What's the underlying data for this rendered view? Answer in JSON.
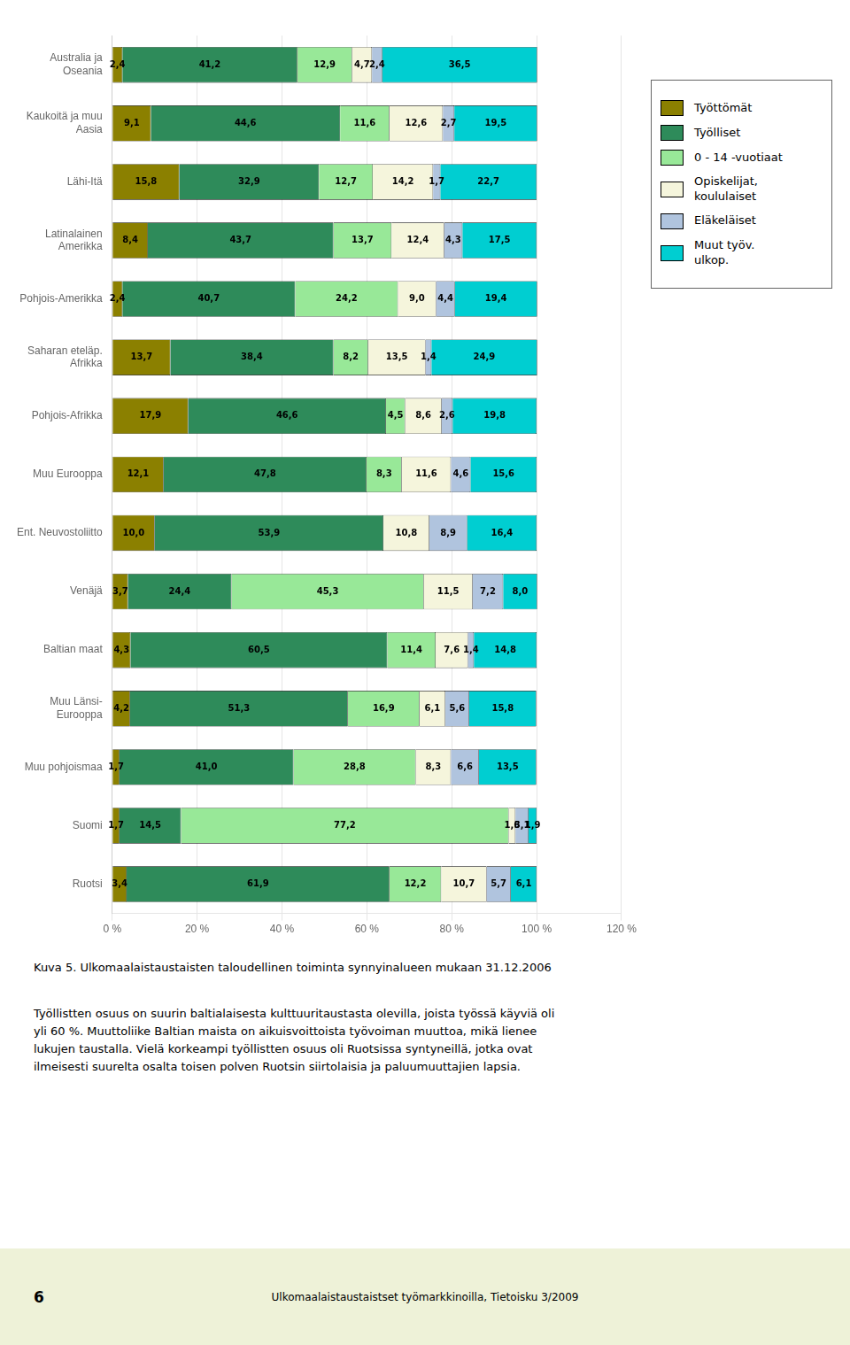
{
  "chart_data": {
    "type": "bar",
    "orientation": "horizontal",
    "stacked": true,
    "grid": true,
    "legend": "right",
    "data_labels": true,
    "categories": [
      "Australia ja\nOseania",
      "Kaukoitä ja muu\nAasia",
      "Lähi-Itä",
      "Latinalainen\nAmerikka",
      "Pohjois-Amerikka",
      "Saharan eteläp.\nAfrikka",
      "Pohjois-Afrikka",
      "Muu Eurooppa",
      "Ent. Neuvostoliitto",
      "Venäjä",
      "Baltian maat",
      "Muu Länsi-\nEurooppa",
      "Muu pohjoismaa",
      "Suomi",
      "Ruotsi"
    ],
    "series": [
      {
        "name": "Työttömät",
        "color": "#8B8000",
        "values": [
          2.4,
          9.1,
          15.8,
          8.4,
          2.4,
          13.7,
          17.9,
          12.1,
          10.0,
          3.7,
          4.3,
          4.2,
          1.7,
          1.7,
          3.4
        ],
        "value_labels": [
          "2,4",
          "9,1",
          "15,8",
          "8,4",
          "2,4",
          "13,7",
          "17,9",
          "12,1",
          "10,0",
          "3,7",
          "4,3",
          "4,2",
          "1,7",
          "1,7",
          "3,4"
        ]
      },
      {
        "name": "Työlliset",
        "color": "#2E8B5A",
        "values": [
          41.2,
          44.6,
          32.9,
          43.7,
          40.7,
          38.4,
          46.6,
          47.8,
          53.9,
          24.4,
          60.5,
          51.3,
          41.0,
          14.5,
          61.9
        ],
        "value_labels": [
          "41,2",
          "44,6",
          "32,9",
          "43,7",
          "40,7",
          "38,4",
          "46,6",
          "47,8",
          "53,9",
          "24,4",
          "60,5",
          "51,3",
          "41,0",
          "14,5",
          "61,9"
        ]
      },
      {
        "name": "0 - 14 -vuotiaat",
        "color": "#98E898",
        "values": [
          12.9,
          11.6,
          12.7,
          13.7,
          24.2,
          8.2,
          4.5,
          8.3,
          0.0,
          45.3,
          11.4,
          16.9,
          28.8,
          77.2,
          12.2
        ],
        "value_labels": [
          "12,9",
          "11,6",
          "12,7",
          "13,7",
          "24,2",
          "8,2",
          "4,5",
          "8,3",
          null,
          "45,3",
          "11,4",
          "16,9",
          "28,8",
          "77,2",
          "12,2"
        ]
      },
      {
        "name": "Opiskelijat,\nkoululaiset",
        "color": "#F5F5DC",
        "values": [
          4.7,
          12.6,
          14.2,
          12.4,
          9.0,
          13.5,
          8.6,
          11.6,
          10.8,
          11.5,
          7.6,
          6.1,
          8.3,
          1.6,
          10.7
        ],
        "value_labels": [
          "4,7",
          "12,6",
          "14,2",
          "12,4",
          "9,0",
          "13,5",
          "8,6",
          "11,6",
          "10,8",
          "11,5",
          "7,6",
          "6,1",
          "8,3",
          "1,6",
          "10,7"
        ]
      },
      {
        "name": "Eläkeläiset",
        "color": "#B0C4DE",
        "values": [
          2.4,
          2.7,
          1.7,
          4.3,
          4.4,
          1.4,
          2.6,
          4.6,
          8.9,
          7.2,
          1.4,
          5.6,
          6.6,
          3.1,
          5.7
        ],
        "value_labels": [
          "2,4",
          "2,7",
          "1,7",
          "4,3",
          "4,4",
          "1,4",
          "2,6",
          "4,6",
          "8,9",
          "7,2",
          "1,4",
          "5,6",
          "6,6",
          "3,1",
          "5,7"
        ]
      },
      {
        "name": "Muut  työv.\nulkop.",
        "color": "#00CED1",
        "values": [
          36.5,
          19.5,
          22.7,
          17.5,
          19.4,
          24.9,
          19.8,
          15.6,
          16.4,
          8.0,
          14.8,
          15.8,
          13.5,
          1.9,
          6.1
        ],
        "value_labels": [
          "36,5",
          "19,5",
          "22,7",
          "17,5",
          "19,4",
          "24,9",
          "19,8",
          "15,6",
          "16,4",
          "8,0",
          "14,8",
          "15,8",
          "13,5",
          "1,9",
          "6,1"
        ]
      }
    ],
    "xlim": [
      0,
      120
    ],
    "xticks": [
      {
        "value": 0,
        "label": "0 %"
      },
      {
        "value": 20,
        "label": "20 %"
      },
      {
        "value": 40,
        "label": "40 %"
      },
      {
        "value": 60,
        "label": "60 %"
      },
      {
        "value": 80,
        "label": "80 %"
      },
      {
        "value": 100,
        "label": "100 %"
      },
      {
        "value": 120,
        "label": "120 %"
      }
    ],
    "annotations": [
      "Kuva 5. Ulkomaalaistaustaisten taloudellinen toiminta synnyinalueen mukaan 31.12.2006",
      "Työllistten osuus on suurin baltialaisesta kulttuuritaustasta olevilla, joista työssä käyviä oli\nyli 60 %. Muuttoliike Baltian maista on aikuisvoittoista työvoiman muuttoa, mikä lienee\nlukujen taustalla. Vielä korkeampi työllistten osuus oli Ruotsissa syntyneillä, jotka ovat\nilmeisesti suurelta osalta toisen polven Ruotsin siirtolaisia ja paluumuuttajien lapsia.",
      "6",
      "Ulkomaalaistaustaistset työmarkkinoilla, Tietoisku 3/2009"
    ]
  }
}
